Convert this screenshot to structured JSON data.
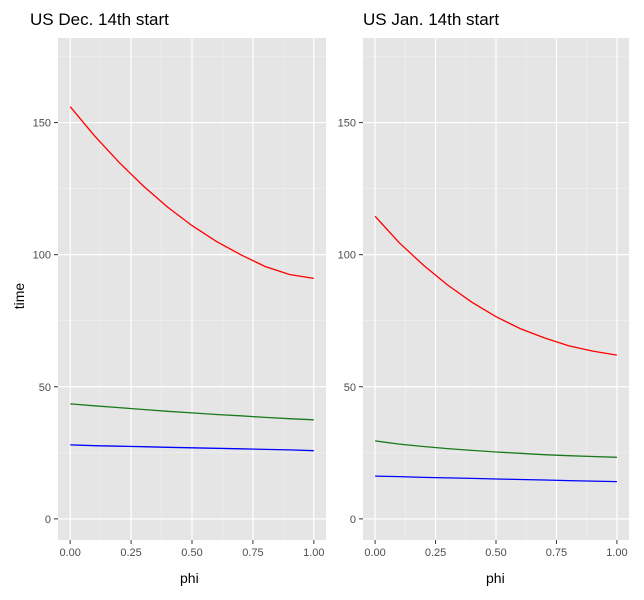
{
  "chart_data": [
    {
      "type": "line",
      "title": "US Dec. 14th start",
      "xlabel": "phi",
      "ylabel": "time",
      "xlim": [
        -0.05,
        1.05
      ],
      "ylim": [
        -8,
        182
      ],
      "xticks": [
        "0.00",
        "0.25",
        "0.50",
        "0.75",
        "1.00"
      ],
      "xtick_values": [
        0,
        0.25,
        0.5,
        0.75,
        1.0
      ],
      "yticks": [
        "0",
        "50",
        "100",
        "150"
      ],
      "ytick_values": [
        0,
        50,
        100,
        150
      ],
      "grid": true,
      "background": "#e5e5e5",
      "x": [
        0,
        0.1,
        0.2,
        0.3,
        0.4,
        0.5,
        0.6,
        0.7,
        0.8,
        0.9,
        1.0
      ],
      "series": [
        {
          "color": "#ff0000",
          "values": [
            156,
            145,
            135,
            126,
            118,
            111,
            105,
            100,
            95.5,
            92.5,
            91
          ]
        },
        {
          "color": "#1a7a1a",
          "values": [
            43.5,
            42.8,
            42.1,
            41.4,
            40.7,
            40.1,
            39.5,
            39.0,
            38.4,
            37.9,
            37.5
          ]
        },
        {
          "color": "#0000ff",
          "values": [
            28,
            27.7,
            27.5,
            27.3,
            27.1,
            26.9,
            26.7,
            26.5,
            26.3,
            26.1,
            25.8
          ]
        }
      ]
    },
    {
      "type": "line",
      "title": "US Jan. 14th start",
      "xlabel": "phi",
      "ylabel": "",
      "xlim": [
        -0.05,
        1.05
      ],
      "ylim": [
        -8,
        182
      ],
      "xticks": [
        "0.00",
        "0.25",
        "0.50",
        "0.75",
        "1.00"
      ],
      "xtick_values": [
        0,
        0.25,
        0.5,
        0.75,
        1.0
      ],
      "yticks": [
        "0",
        "50",
        "100",
        "150"
      ],
      "ytick_values": [
        0,
        50,
        100,
        150
      ],
      "grid": true,
      "background": "#e5e5e5",
      "x": [
        0,
        0.1,
        0.2,
        0.3,
        0.4,
        0.5,
        0.6,
        0.7,
        0.8,
        0.9,
        1.0
      ],
      "series": [
        {
          "color": "#ff0000",
          "values": [
            114.5,
            104.5,
            96,
            88.5,
            82,
            76.5,
            72,
            68.5,
            65.5,
            63.5,
            62
          ]
        },
        {
          "color": "#1a7a1a",
          "values": [
            29.5,
            28.3,
            27.4,
            26.6,
            25.9,
            25.3,
            24.8,
            24.3,
            23.9,
            23.6,
            23.3
          ]
        },
        {
          "color": "#0000ff",
          "values": [
            16.2,
            16.0,
            15.7,
            15.5,
            15.3,
            15.1,
            14.9,
            14.7,
            14.5,
            14.3,
            14.1
          ]
        }
      ]
    }
  ]
}
